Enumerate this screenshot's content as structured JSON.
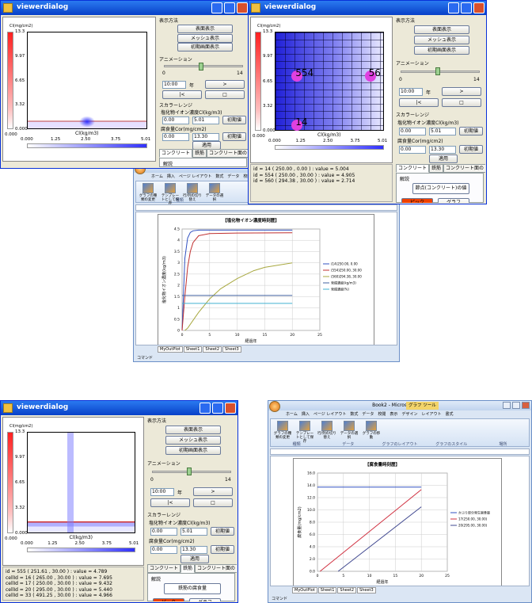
{
  "windows": [
    {
      "title": "viewerdialog",
      "tabs": [
        "コンクリート",
        "鉄筋",
        "コンクリート面の"
      ],
      "active_tab": 0,
      "tab_content": {
        "heading": "解説"
      },
      "markers": [],
      "info_lines": []
    },
    {
      "title": "viewerdialog",
      "tabs": [
        "コンクリート",
        "鉄筋",
        "コンクリート面の"
      ],
      "active_tab": 0,
      "tab_content": {
        "heading": "解説",
        "item": "節点(コンクリート)の値",
        "pick": "ピック",
        "graph": "グラフ"
      },
      "markers": [
        {
          "label": "554"
        },
        {
          "label": "56"
        },
        {
          "label": "14"
        }
      ],
      "info_lines": [
        "id = 14 ( 250.00 , 0.00 ) : value = 5.004",
        "id = 554 ( 250.00 , 30.00 ) : value = 4.905",
        "id = 560 ( 294.38 , 30.00 ) : value = 2.714"
      ]
    },
    {
      "title": "viewerdialog",
      "tabs": [
        "コンクリート",
        "鉄筋",
        "コンクリート面の"
      ],
      "active_tab": 1,
      "tab_content": {
        "heading": "解説",
        "item": "鉄筋の腐食量",
        "pick": "ピック",
        "graph": "グラフ"
      },
      "markers": [],
      "info_lines": [
        "id = 555 ( 251.61 , 30.00 ) : value = 4.789",
        "cellId = 16 ( 265.00 , 30.00 ) : value = 7.695",
        "cellId = 17 ( 250.00 , 30.00 ) : value = 9.432",
        "cellId = 20 ( 295.00 , 30.00 ) : value = 5.440",
        "cellId = 33 ( 491.25 , 30.00 ) : value = 4.966"
      ]
    }
  ],
  "colorbar": {
    "unit": "Cl(mg/cm2)",
    "ticks": [
      "13.3",
      "9.97",
      "6.65",
      "3.32",
      "0.000"
    ]
  },
  "x_axis": {
    "ticks": [
      "0.000",
      "1.25",
      "2.50",
      "3.75",
      "5.01"
    ],
    "label": "Cl(kg/m3)"
  },
  "panel": {
    "display_title": "表示方法",
    "buttons": [
      "表面表示",
      "メッシュ表示",
      "初期画面表示"
    ],
    "animation_title": "アニメーション",
    "slider_min": "0",
    "slider_max": "14",
    "time": "10:00",
    "year": "年",
    "play": ">",
    "first": "|<",
    "stop": "□",
    "scalar_title": "スカラーレンジ",
    "chloride_label": "塩化物イオン濃度Cl(kg/m3)",
    "chloride_min": "0.00",
    "chloride_max": "5.01",
    "reset": "初期値",
    "corrosion_label": "腐食量Cor(mg/cm2)",
    "corrosion_min": "0.00",
    "corrosion_max": "13.30",
    "apply": "適用"
  },
  "excel": [
    {
      "title": "Book1 - Microsoft Excel",
      "ribbon_tabs": [
        "ホーム",
        "挿入",
        "ページ レイアウト",
        "数式",
        "データ",
        "校閲",
        "表示"
      ],
      "tools": [
        "グラフの種類の変更",
        "テンプレートとして保存",
        "行/列の切り替え",
        "データの選択"
      ],
      "groups": [
        "種類",
        "データ",
        "グラフのレイアウト"
      ],
      "sheet_tabs": [
        "MyOutPlot",
        "Sheet1",
        "Sheet2",
        "Sheet3"
      ],
      "status": "コマンド"
    },
    {
      "title": "Book2 - Microsoft Excel",
      "context_tab": "グラフ ツール",
      "ribbon_tabs": [
        "ホーム",
        "挿入",
        "ページ レイアウト",
        "数式",
        "データ",
        "校閲",
        "表示",
        "デザイン",
        "レイアウト",
        "書式"
      ],
      "tools": [
        "グラフの種類の変更",
        "テンプレートとして保存",
        "行/列の切り替え",
        "データの選択",
        "グラフの移動"
      ],
      "groups": [
        "種類",
        "データ",
        "グラフのレイアウト",
        "グラフのスタイル",
        "場所"
      ],
      "sheet_tabs": [
        "MyOutPlot",
        "Sheet1",
        "Sheet2",
        "Sheet3"
      ],
      "status": "コマンド"
    }
  ],
  "chart_data": [
    {
      "type": "line",
      "title": "【塩化物イオン濃度時刻歴】",
      "x_label": "経過年",
      "y_label": "塩化物イオン濃度(kg/m3)",
      "xlim": [
        0,
        25
      ],
      "xticks": [
        0,
        5,
        10,
        15,
        20,
        25
      ],
      "ylim": [
        0,
        4.5
      ],
      "yticks": [
        0,
        0.5,
        1,
        1.5,
        2,
        2.5,
        3,
        3.5,
        4,
        4.5
      ],
      "grid": true,
      "legend": "right",
      "series": [
        {
          "name": "(14)250.00, 0.00",
          "color": "#3050c0",
          "x": [
            0,
            0.5,
            1,
            1.5,
            2,
            3,
            5,
            10,
            20
          ],
          "values": [
            0,
            3.2,
            4.1,
            4.35,
            4.42,
            4.45,
            4.45,
            4.45,
            4.45
          ]
        },
        {
          "name": "(554)250.00, 30.00",
          "color": "#c03030",
          "x": [
            0,
            0.5,
            1,
            1.5,
            2,
            3,
            5,
            10,
            20
          ],
          "values": [
            0,
            1.5,
            2.8,
            3.5,
            3.9,
            4.2,
            4.3,
            4.32,
            4.33
          ]
        },
        {
          "name": "(560)294.38, 30.00",
          "color": "#a8a840",
          "x": [
            0.5,
            1,
            2,
            3,
            5,
            7,
            10,
            13,
            15,
            20
          ],
          "values": [
            0,
            0.1,
            0.45,
            0.8,
            1.4,
            1.85,
            2.3,
            2.65,
            2.8,
            3.0
          ]
        },
        {
          "name": "発錆濃度(kg/m3)",
          "color": "#4060a0",
          "x": [
            0,
            20
          ],
          "values": [
            1.55,
            1.55
          ]
        },
        {
          "name": "発錆濃度(%)",
          "color": "#40b0d0",
          "x": [
            0,
            20
          ],
          "values": [
            1.2,
            1.2
          ]
        }
      ]
    },
    {
      "type": "line",
      "title": "【腐食量時刻歴】",
      "x_label": "経過年",
      "y_label": "腐食量(mg/cm2)",
      "xlim": [
        0,
        25
      ],
      "xticks": [
        0,
        5,
        10,
        15,
        20,
        25
      ],
      "ylim": [
        0,
        16
      ],
      "yticks": [
        {
          "value": 0,
          "label": "0.0"
        },
        {
          "value": 2,
          "label": "2.0"
        },
        {
          "value": 4,
          "label": "4.0"
        },
        {
          "value": 6,
          "label": "6.0"
        },
        {
          "value": 8,
          "label": "8.0"
        },
        {
          "value": 10,
          "label": "10.0"
        },
        {
          "value": 12,
          "label": "12.0"
        },
        {
          "value": 14,
          "label": "14.0"
        },
        {
          "value": 16,
          "label": "16.0"
        }
      ],
      "grid": true,
      "legend": "right",
      "series": [
        {
          "name": "かぶり部分発生腐食量",
          "color": "#3050c0",
          "x": [
            0,
            20
          ],
          "values": [
            13.7,
            13.7
          ]
        },
        {
          "name": "17(250.00, 30.00)",
          "color": "#d03040",
          "x": [
            0.5,
            20
          ],
          "values": [
            0,
            13.3
          ]
        },
        {
          "name": "20(295.00, 30.00)",
          "color": "#404890",
          "x": [
            4,
            20
          ],
          "values": [
            0,
            10.5
          ]
        }
      ]
    }
  ]
}
